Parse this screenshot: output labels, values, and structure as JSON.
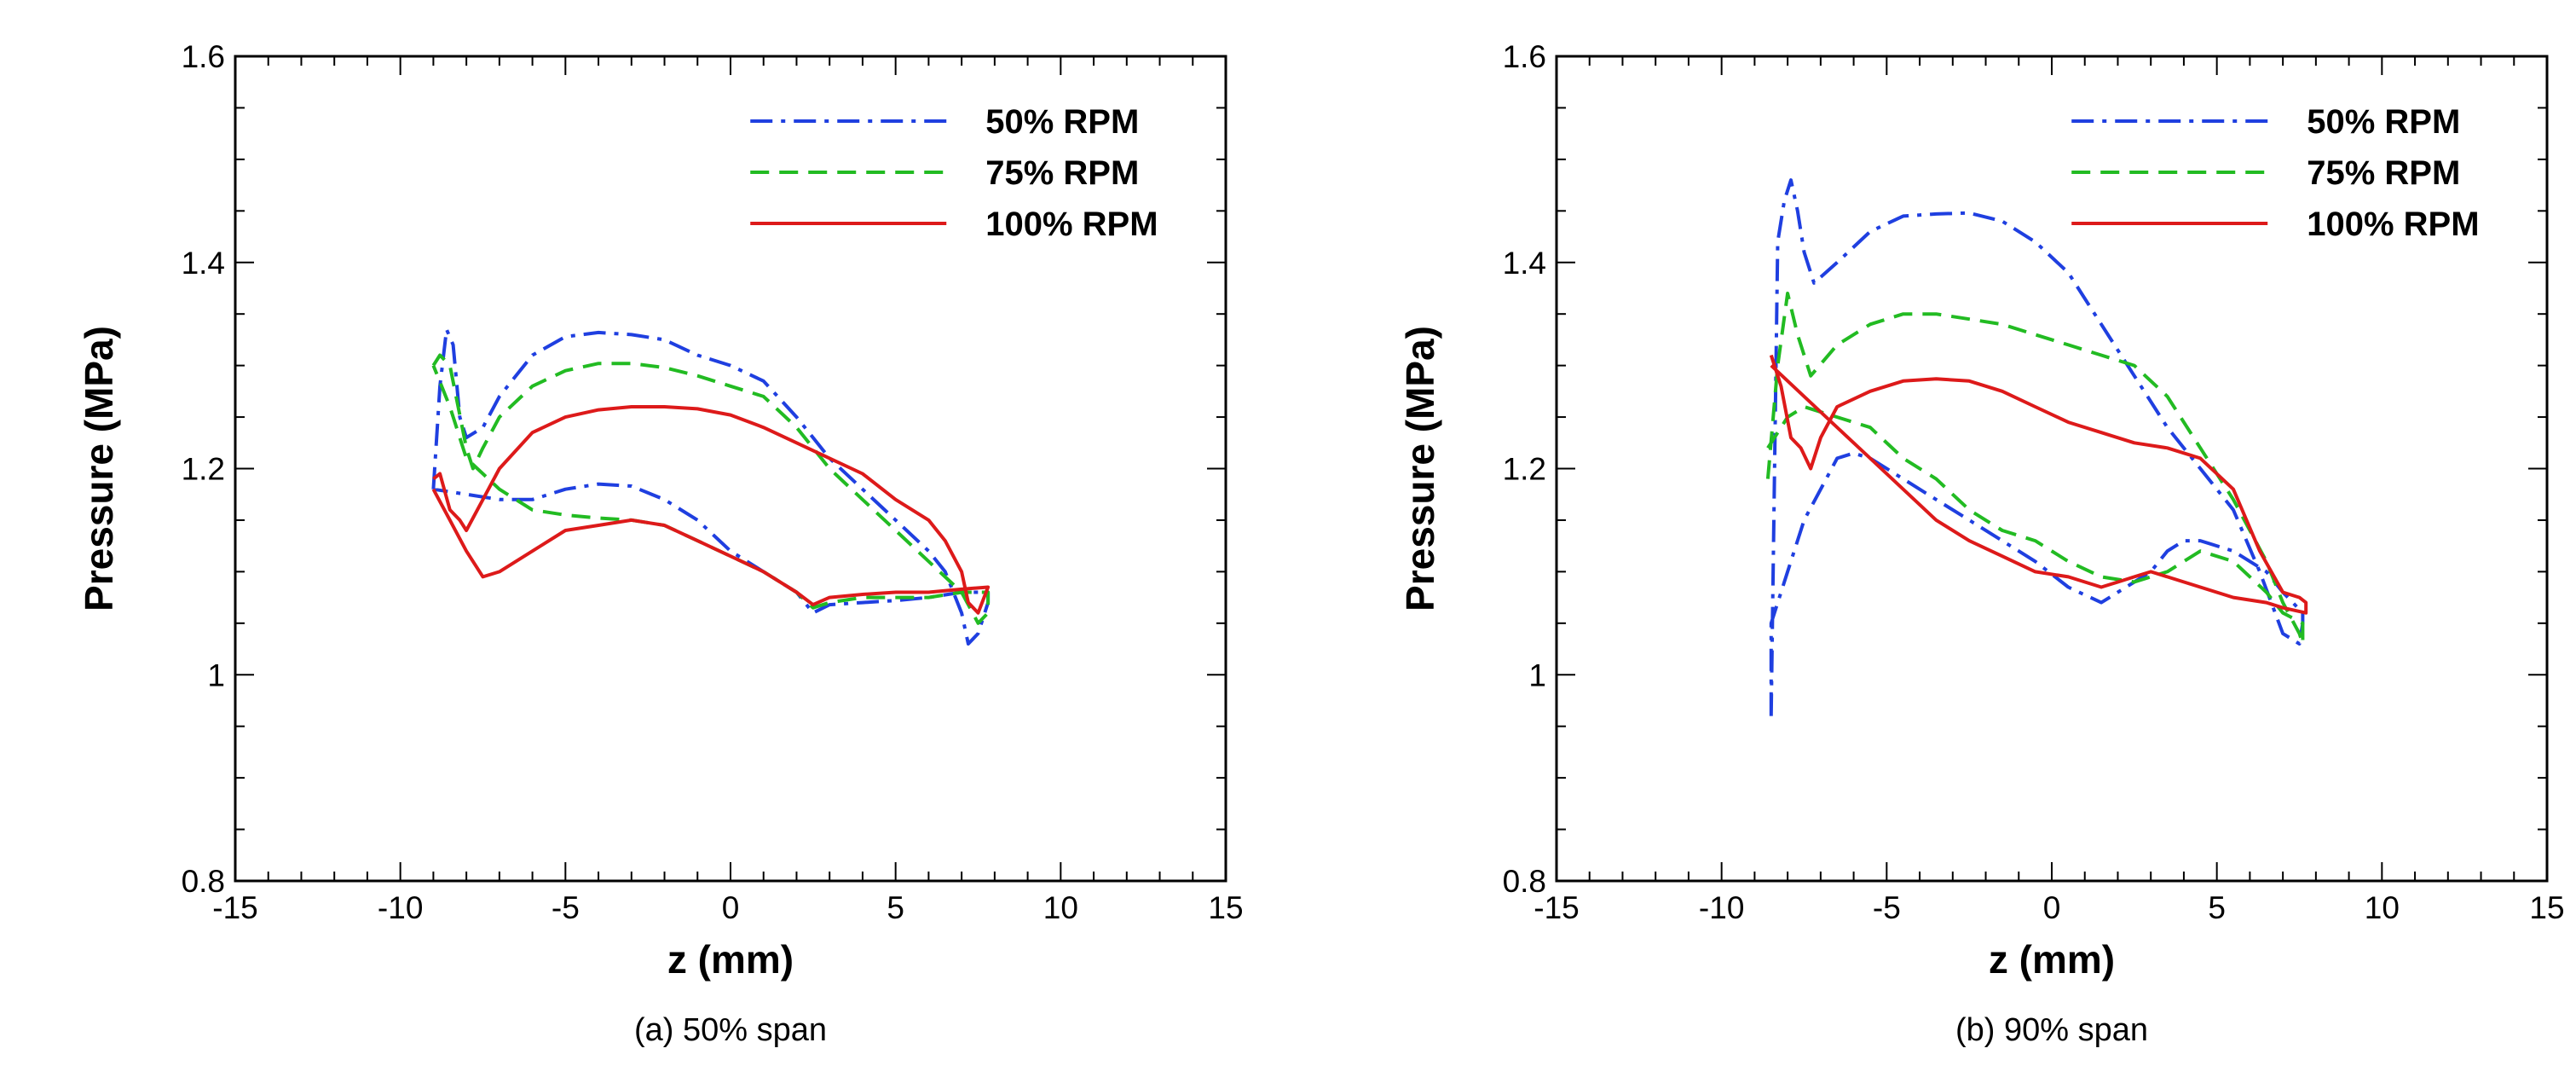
{
  "chart_data": [
    {
      "type": "line",
      "caption": "(a) 50% span",
      "xlabel": "z (mm)",
      "ylabel": "Pressure (MPa)",
      "xlim": [
        -15,
        15
      ],
      "ylim": [
        0.8,
        1.6
      ],
      "xticks": [
        -15,
        -10,
        -5,
        0,
        5,
        10,
        15
      ],
      "xtick_labels": [
        "-15",
        "-10",
        "-5",
        "0",
        "5",
        "10",
        "15"
      ],
      "yticks": [
        0.8,
        1.0,
        1.2,
        1.4,
        1.6
      ],
      "ytick_labels": [
        "0.8",
        "1",
        "1.2",
        "1.4",
        "1.6"
      ],
      "legend_position": "top-right",
      "grid": false,
      "series": [
        {
          "name": "50% RPM",
          "color": "#1f3fe0",
          "style": "dashdot",
          "x": [
            -9.0,
            -8.8,
            -8.6,
            -8.4,
            -8.2,
            -8.0,
            -7.5,
            -7.0,
            -6.0,
            -5.0,
            -4.0,
            -3.0,
            -2.0,
            -1.0,
            0.0,
            1.0,
            2.0,
            3.0,
            4.0,
            5.0,
            6.0,
            6.5,
            7.0,
            7.2,
            7.5,
            7.8,
            7.8,
            7.5,
            7.0,
            6.0,
            5.0,
            4.0,
            3.0,
            2.5,
            2.0,
            1.0,
            0.0,
            -1.0,
            -2.0,
            -3.0,
            -4.0,
            -5.0,
            -6.0,
            -7.0,
            -8.0,
            -9.0
          ],
          "y": [
            1.18,
            1.28,
            1.335,
            1.32,
            1.25,
            1.23,
            1.24,
            1.27,
            1.31,
            1.328,
            1.332,
            1.33,
            1.325,
            1.31,
            1.3,
            1.285,
            1.25,
            1.21,
            1.18,
            1.15,
            1.12,
            1.1,
            1.06,
            1.03,
            1.04,
            1.07,
            1.08,
            1.08,
            1.08,
            1.075,
            1.072,
            1.07,
            1.068,
            1.06,
            1.08,
            1.1,
            1.12,
            1.15,
            1.17,
            1.183,
            1.185,
            1.18,
            1.17,
            1.17,
            1.175,
            1.18
          ]
        },
        {
          "name": "75% RPM",
          "color": "#22bb22",
          "style": "dashed",
          "x": [
            -9.0,
            -8.8,
            -8.5,
            -8.0,
            -7.8,
            -7.5,
            -7.0,
            -6.0,
            -5.0,
            -4.0,
            -3.0,
            -2.0,
            -1.0,
            0.0,
            1.0,
            2.0,
            3.0,
            4.0,
            5.0,
            6.0,
            7.0,
            7.5,
            7.8,
            7.8,
            7.0,
            6.0,
            5.0,
            4.0,
            3.0,
            2.5,
            2.0,
            1.0,
            0.0,
            -1.0,
            -2.0,
            -3.0,
            -4.0,
            -5.0,
            -6.0,
            -7.0,
            -8.0,
            -8.5,
            -9.0
          ],
          "y": [
            1.3,
            1.31,
            1.3,
            1.22,
            1.2,
            1.22,
            1.25,
            1.28,
            1.295,
            1.302,
            1.302,
            1.298,
            1.29,
            1.28,
            1.27,
            1.24,
            1.2,
            1.17,
            1.14,
            1.11,
            1.08,
            1.05,
            1.06,
            1.08,
            1.08,
            1.075,
            1.075,
            1.075,
            1.07,
            1.065,
            1.08,
            1.1,
            1.115,
            1.13,
            1.145,
            1.15,
            1.152,
            1.155,
            1.16,
            1.18,
            1.21,
            1.26,
            1.3
          ]
        },
        {
          "name": "100% RPM",
          "color": "#dd1a1a",
          "style": "solid",
          "x": [
            -9.0,
            -8.8,
            -8.5,
            -8.2,
            -8.0,
            -7.5,
            -7.0,
            -6.0,
            -5.0,
            -4.0,
            -3.0,
            -2.0,
            -1.0,
            0.0,
            1.0,
            2.0,
            3.0,
            4.0,
            5.0,
            6.0,
            6.5,
            7.0,
            7.2,
            7.5,
            7.8,
            7.8,
            7.0,
            6.0,
            5.0,
            4.0,
            3.0,
            2.5,
            2.0,
            1.0,
            0.0,
            -1.0,
            -2.0,
            -3.0,
            -4.0,
            -5.0,
            -6.0,
            -7.0,
            -7.5,
            -8.0,
            -8.5,
            -9.0
          ],
          "y": [
            1.19,
            1.195,
            1.16,
            1.15,
            1.14,
            1.17,
            1.2,
            1.235,
            1.25,
            1.257,
            1.26,
            1.26,
            1.258,
            1.252,
            1.24,
            1.225,
            1.21,
            1.195,
            1.17,
            1.15,
            1.13,
            1.1,
            1.07,
            1.06,
            1.085,
            1.085,
            1.083,
            1.08,
            1.08,
            1.078,
            1.075,
            1.068,
            1.08,
            1.1,
            1.115,
            1.13,
            1.145,
            1.15,
            1.145,
            1.14,
            1.12,
            1.1,
            1.095,
            1.12,
            1.15,
            1.18
          ]
        }
      ]
    },
    {
      "type": "line",
      "caption": "(b) 90% span",
      "xlabel": "z (mm)",
      "ylabel": "Pressure (MPa)",
      "xlim": [
        -15,
        15
      ],
      "ylim": [
        0.8,
        1.6
      ],
      "xticks": [
        -15,
        -10,
        -5,
        0,
        5,
        10,
        15
      ],
      "xtick_labels": [
        "-15",
        "-10",
        "-5",
        "0",
        "5",
        "10",
        "15"
      ],
      "yticks": [
        0.8,
        1.0,
        1.2,
        1.4,
        1.6
      ],
      "ytick_labels": [
        "0.8",
        "1",
        "1.2",
        "1.4",
        "1.6"
      ],
      "legend_position": "top-right",
      "grid": false,
      "series": [
        {
          "name": "50% RPM",
          "color": "#1f3fe0",
          "style": "dashdot",
          "x": [
            -8.5,
            -8.3,
            -8.1,
            -7.9,
            -7.7,
            -7.5,
            -7.2,
            -6.5,
            -5.5,
            -4.5,
            -3.5,
            -2.5,
            -1.5,
            -0.5,
            0.5,
            1.5,
            2.5,
            3.5,
            4.5,
            5.5,
            6.3,
            7.0,
            7.5,
            7.6,
            7.6,
            7.0,
            6.5,
            5.5,
            4.5,
            4.0,
            3.5,
            3.0,
            2.5,
            2.0,
            1.5,
            0.5,
            -0.5,
            -1.5,
            -2.5,
            -3.5,
            -4.5,
            -5.5,
            -6.0,
            -6.5,
            -7.0,
            -7.5,
            -8.0,
            -8.5,
            -8.5
          ],
          "y": [
            0.96,
            1.42,
            1.46,
            1.48,
            1.45,
            1.41,
            1.38,
            1.4,
            1.43,
            1.445,
            1.447,
            1.448,
            1.44,
            1.42,
            1.39,
            1.34,
            1.29,
            1.24,
            1.2,
            1.16,
            1.1,
            1.04,
            1.03,
            1.05,
            1.06,
            1.08,
            1.1,
            1.12,
            1.13,
            1.13,
            1.12,
            1.1,
            1.09,
            1.08,
            1.07,
            1.085,
            1.11,
            1.13,
            1.15,
            1.17,
            1.19,
            1.21,
            1.215,
            1.21,
            1.18,
            1.15,
            1.1,
            1.05,
            0.96
          ]
        },
        {
          "name": "75% RPM",
          "color": "#22bb22",
          "style": "dashed",
          "x": [
            -8.6,
            -8.3,
            -8.0,
            -7.7,
            -7.3,
            -6.5,
            -5.5,
            -4.5,
            -3.5,
            -2.5,
            -1.5,
            -0.5,
            0.5,
            1.5,
            2.5,
            3.5,
            4.5,
            5.5,
            6.5,
            7.0,
            7.5,
            7.6,
            7.6,
            7.0,
            6.5,
            5.5,
            4.5,
            3.5,
            2.5,
            1.5,
            0.5,
            -0.5,
            -1.5,
            -2.5,
            -3.5,
            -4.5,
            -5.5,
            -6.5,
            -7.5,
            -8.0,
            -8.6
          ],
          "y": [
            1.19,
            1.3,
            1.37,
            1.33,
            1.29,
            1.32,
            1.34,
            1.35,
            1.35,
            1.345,
            1.34,
            1.33,
            1.32,
            1.31,
            1.3,
            1.27,
            1.22,
            1.17,
            1.11,
            1.07,
            1.04,
            1.03,
            1.05,
            1.06,
            1.08,
            1.11,
            1.12,
            1.1,
            1.09,
            1.095,
            1.11,
            1.13,
            1.14,
            1.16,
            1.19,
            1.21,
            1.24,
            1.25,
            1.26,
            1.25,
            1.22
          ]
        },
        {
          "name": "100% RPM",
          "color": "#dd1a1a",
          "style": "solid",
          "x": [
            -8.5,
            -8.2,
            -7.9,
            -7.6,
            -7.3,
            -7.0,
            -6.5,
            -5.5,
            -4.5,
            -3.5,
            -2.5,
            -1.5,
            -0.5,
            0.5,
            1.5,
            2.5,
            3.5,
            4.5,
            5.5,
            6.3,
            7.0,
            7.5,
            7.7,
            7.7,
            7.0,
            6.5,
            5.5,
            4.5,
            3.5,
            3.0,
            2.5,
            2.0,
            1.5,
            0.5,
            -0.5,
            -1.5,
            -2.5,
            -3.5,
            -4.5,
            -5.5,
            -6.5,
            -7.5,
            -8.5
          ],
          "y": [
            1.31,
            1.28,
            1.23,
            1.22,
            1.2,
            1.23,
            1.26,
            1.275,
            1.285,
            1.287,
            1.285,
            1.275,
            1.26,
            1.245,
            1.235,
            1.225,
            1.22,
            1.21,
            1.18,
            1.12,
            1.08,
            1.075,
            1.07,
            1.06,
            1.065,
            1.07,
            1.075,
            1.085,
            1.095,
            1.1,
            1.095,
            1.09,
            1.085,
            1.095,
            1.1,
            1.115,
            1.13,
            1.15,
            1.18,
            1.21,
            1.24,
            1.27,
            1.3
          ]
        }
      ]
    }
  ]
}
